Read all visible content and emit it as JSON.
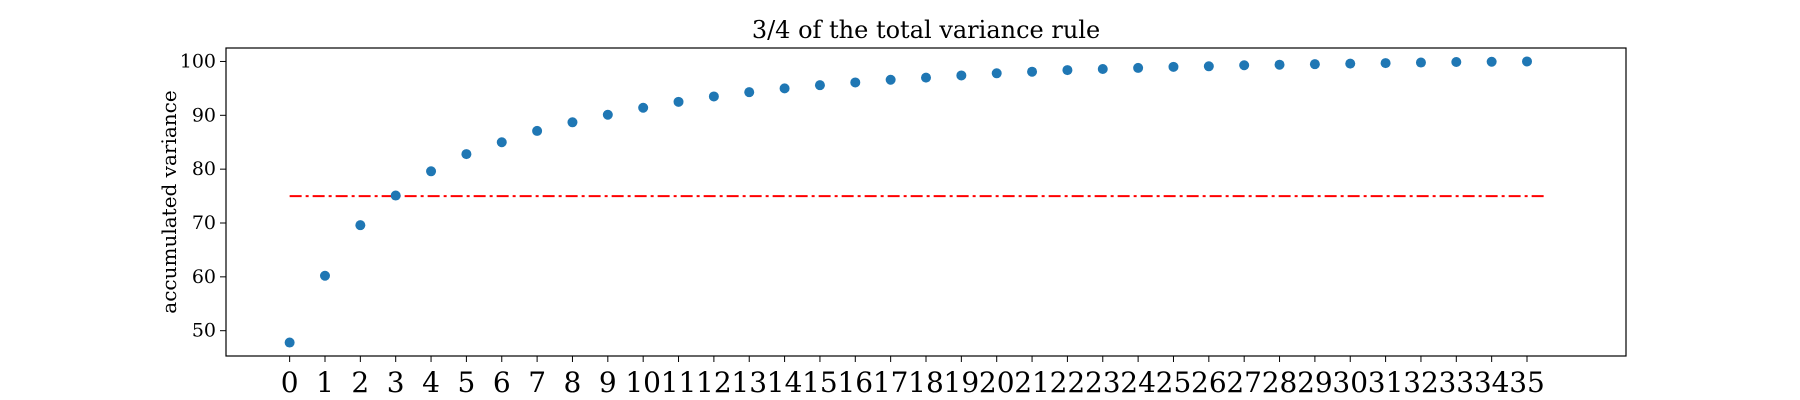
{
  "chart_data": {
    "type": "scatter",
    "title": "3/4 of the total variance rule",
    "xlabel": "",
    "ylabel": "accumulated variance",
    "x": [
      0,
      1,
      2,
      3,
      4,
      5,
      6,
      7,
      8,
      9,
      10,
      11,
      12,
      13,
      14,
      15,
      16,
      17,
      18,
      19,
      20,
      21,
      22,
      23,
      24,
      25,
      26,
      27,
      28,
      29,
      30,
      31,
      32,
      33,
      34,
      35
    ],
    "series": [
      {
        "color": "#1f77b4",
        "values": [
          47.8,
          60.2,
          69.6,
          75.1,
          79.6,
          82.8,
          85.0,
          87.1,
          88.7,
          90.1,
          91.4,
          92.5,
          93.5,
          94.3,
          95.0,
          95.6,
          96.1,
          96.6,
          97.0,
          97.4,
          97.8,
          98.1,
          98.4,
          98.6,
          98.8,
          99.0,
          99.1,
          99.3,
          99.4,
          99.5,
          99.6,
          99.7,
          99.8,
          99.9,
          99.95,
          100.0
        ]
      }
    ],
    "reference_line": {
      "y": 75,
      "x_range": [
        0,
        35.5
      ],
      "color": "#ff0000",
      "style": "dash-dot"
    },
    "xlim": [
      -1.8,
      37.8
    ],
    "ylim": [
      45.3,
      102.5
    ],
    "xticks": [
      "0",
      "1",
      "2",
      "3",
      "4",
      "5",
      "6",
      "7",
      "8",
      "9",
      "10",
      "11",
      "12",
      "13",
      "14",
      "15",
      "16",
      "17",
      "18",
      "19",
      "20",
      "21",
      "22",
      "23",
      "24",
      "25",
      "26",
      "27",
      "28",
      "29",
      "30",
      "31",
      "32",
      "33",
      "34",
      "35"
    ],
    "yticks": [
      50,
      60,
      70,
      80,
      90,
      100
    ],
    "grid": false,
    "legend": "none"
  }
}
